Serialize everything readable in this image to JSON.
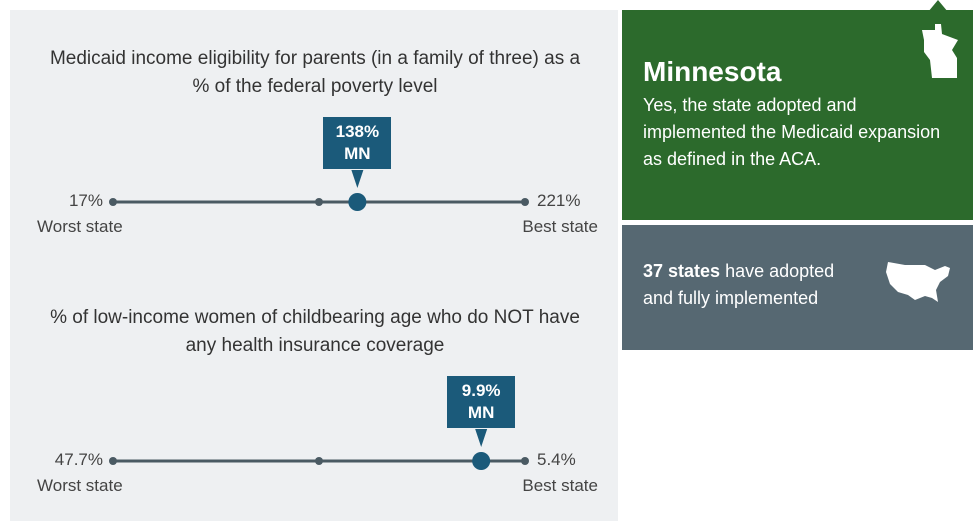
{
  "chart_data": [
    {
      "type": "dot_range",
      "title": "Medicaid income eligibility for parents (in a family of three) as a % of the federal poverty level",
      "low_label": "Worst state",
      "high_label": "Best state",
      "xlim": [
        17,
        221
      ],
      "xticks": [
        {
          "value": 17,
          "label": "17%"
        },
        {
          "value": 221,
          "label": "221%"
        }
      ],
      "marker": {
        "name": "MN",
        "value": 138,
        "value_label": "138%"
      },
      "color": "#1b5a7a"
    },
    {
      "type": "dot_range",
      "title": "% of low-income women of childbearing age who do NOT have any health insurance coverage",
      "low_label": "Worst state",
      "high_label": "Best state",
      "xlim": [
        47.7,
        5.4
      ],
      "xticks": [
        {
          "value": 47.7,
          "label": "47.7%"
        },
        {
          "value": 5.4,
          "label": "5.4%"
        }
      ],
      "marker": {
        "name": "MN",
        "value": 9.9,
        "value_label": "9.9%"
      },
      "color": "#1b5a7a"
    }
  ],
  "state_panel": {
    "state": "Minnesota",
    "text": "Yes, the state adopted and implemented the Medicaid expansion as defined in the ACA."
  },
  "national_panel": {
    "bold": "37 states",
    "text": "have adopted and fully implemented"
  }
}
